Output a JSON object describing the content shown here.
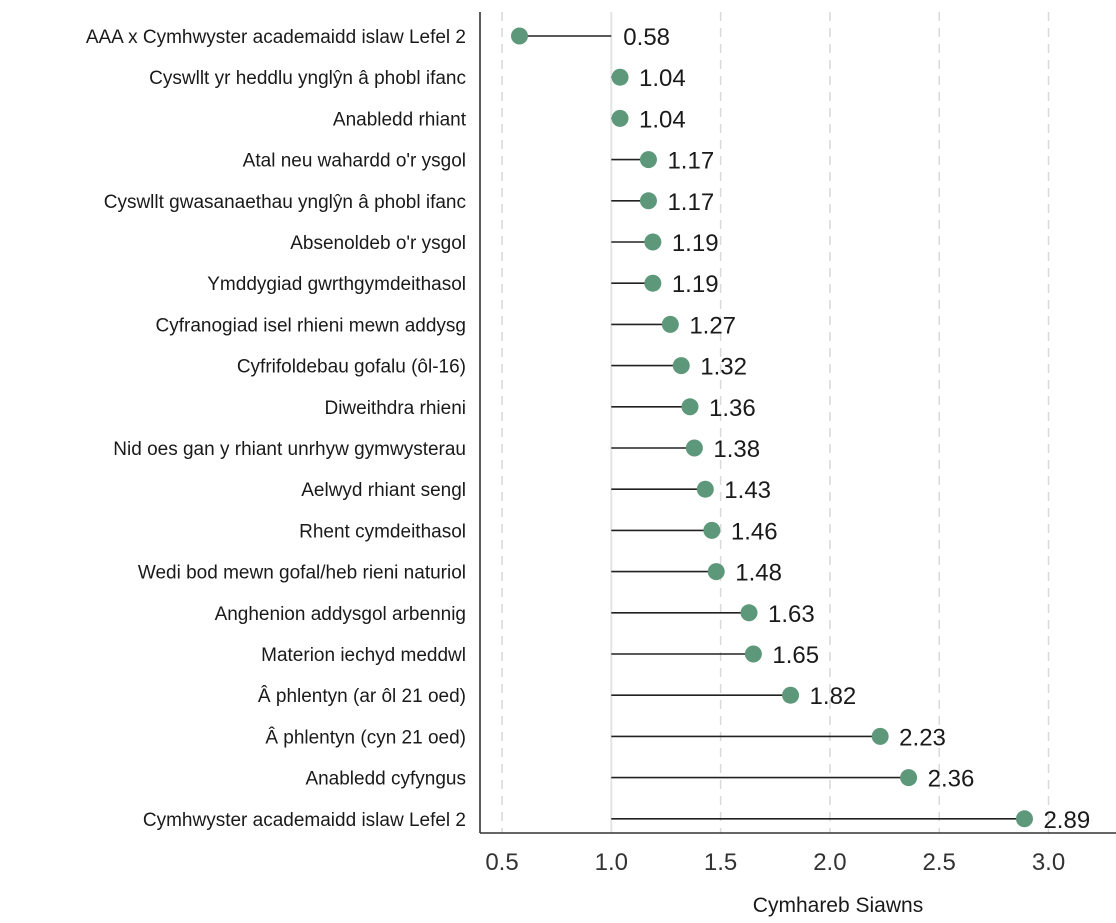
{
  "chart_data": {
    "type": "lollipop",
    "orientation": "horizontal",
    "reference_value": 1.0,
    "categories": [
      "AAA x Cymhwyster academaidd islaw Lefel 2",
      "Cyswllt yr heddlu ynglŷn â phobl ifanc",
      "Anabledd rhiant",
      "Atal neu wahardd o'r ysgol",
      "Cyswllt gwasanaethau ynglŷn â phobl ifanc",
      "Absenoldeb o'r ysgol",
      "Ymddygiad gwrthgymdeithasol",
      "Cyfranogiad isel rhieni mewn addysg",
      "Cyfrifoldebau gofalu (ôl-16)",
      "Diweithdra rhieni",
      "Nid oes gan y rhiant unrhyw gymwysterau",
      "Aelwyd rhiant sengl",
      "Rhent cymdeithasol",
      "Wedi bod mewn gofal/heb rieni naturiol",
      "Anghenion addysgol arbennig",
      "Materion iechyd meddwl",
      "Â phlentyn (ar ôl 21 oed)",
      "Â phlentyn (cyn 21 oed)",
      "Anabledd cyfyngus",
      "Cymhwyster academaidd islaw Lefel 2"
    ],
    "values": [
      0.58,
      1.04,
      1.04,
      1.17,
      1.17,
      1.19,
      1.19,
      1.27,
      1.32,
      1.36,
      1.38,
      1.43,
      1.46,
      1.48,
      1.63,
      1.65,
      1.82,
      2.23,
      2.36,
      2.89
    ],
    "value_labels": [
      "0.58",
      "1.04",
      "1.04",
      "1.17",
      "1.17",
      "1.19",
      "1.19",
      "1.27",
      "1.32",
      "1.36",
      "1.38",
      "1.43",
      "1.46",
      "1.48",
      "1.63",
      "1.65",
      "1.82",
      "2.23",
      "2.36",
      "2.89"
    ],
    "xticks": [
      0.5,
      1.0,
      1.5,
      2.0,
      2.5,
      3.0
    ],
    "xtick_labels": [
      "0.5",
      "1.0",
      "1.5",
      "2.0",
      "2.5",
      "3.0"
    ],
    "xlim": [
      0.4,
      3.2
    ],
    "xlabel": "Cymhareb Siawns",
    "grid": "vertical-dashed",
    "colors": {
      "marker": "#5e987a",
      "stem": "#222222",
      "grid": "#d9d9d9",
      "axis": "#333333"
    }
  }
}
